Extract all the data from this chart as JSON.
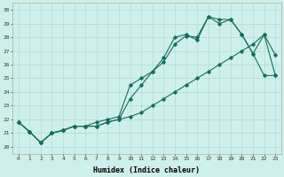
{
  "xlabel": "Humidex (Indice chaleur)",
  "bg_color": "#cff0ea",
  "grid_color": "#aaddd7",
  "line_color": "#1a6b5e",
  "xlim": [
    -0.5,
    23.5
  ],
  "ylim": [
    19.5,
    30.5
  ],
  "xticks": [
    0,
    1,
    2,
    3,
    4,
    5,
    6,
    7,
    8,
    9,
    10,
    11,
    12,
    13,
    14,
    15,
    16,
    17,
    18,
    19,
    20,
    21,
    22,
    23
  ],
  "yticks": [
    20,
    21,
    22,
    23,
    24,
    25,
    26,
    27,
    28,
    29,
    30
  ],
  "line1_x": [
    0,
    1,
    2,
    3,
    4,
    5,
    6,
    7,
    8,
    9,
    10,
    11,
    12,
    13,
    14,
    15,
    16,
    17,
    18,
    19,
    20,
    21,
    22,
    23
  ],
  "line1_y": [
    21.8,
    21.1,
    20.3,
    21.0,
    21.2,
    21.5,
    21.5,
    21.5,
    21.8,
    22.0,
    23.5,
    24.5,
    25.5,
    26.2,
    27.5,
    28.1,
    28.0,
    29.5,
    29.0,
    29.3,
    28.2,
    26.8,
    25.2,
    25.2
  ],
  "line2_x": [
    0,
    1,
    2,
    3,
    4,
    5,
    6,
    7,
    8,
    9,
    10,
    11,
    12,
    13,
    14,
    15,
    16,
    17,
    18,
    19,
    20,
    21,
    22,
    23
  ],
  "line2_y": [
    21.8,
    21.1,
    20.3,
    21.0,
    21.2,
    21.5,
    21.5,
    21.8,
    22.0,
    22.2,
    24.5,
    25.0,
    25.5,
    26.5,
    28.0,
    28.2,
    27.8,
    29.5,
    29.3,
    29.3,
    28.2,
    26.8,
    28.2,
    26.7
  ],
  "line3_x": [
    0,
    1,
    2,
    3,
    4,
    5,
    6,
    7,
    8,
    9,
    10,
    11,
    12,
    13,
    14,
    15,
    16,
    17,
    18,
    19,
    20,
    21,
    22,
    23
  ],
  "line3_y": [
    21.8,
    21.1,
    20.3,
    21.0,
    21.2,
    21.5,
    21.5,
    21.5,
    21.8,
    22.0,
    22.2,
    22.5,
    23.0,
    23.5,
    24.0,
    24.5,
    25.0,
    25.5,
    26.0,
    26.5,
    27.0,
    27.5,
    28.2,
    25.2
  ]
}
